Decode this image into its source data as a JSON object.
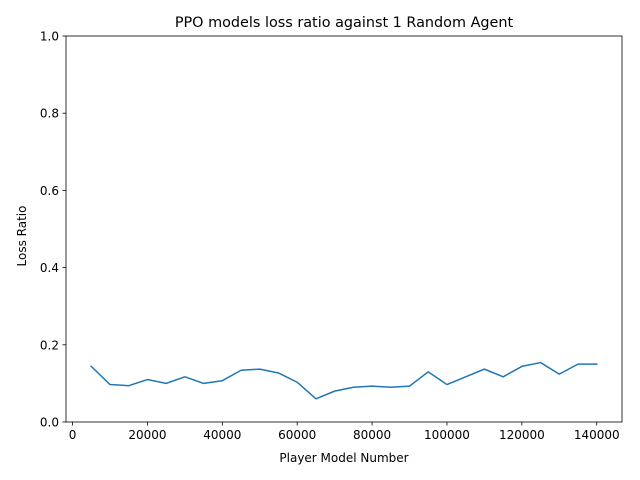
{
  "chart_data": {
    "type": "line",
    "title": "PPO models loss ratio against 1 Random Agent",
    "xlabel": "Player Model Number",
    "ylabel": "Loss Ratio",
    "xlim": [
      -1750,
      146750
    ],
    "ylim": [
      0,
      1
    ],
    "xticks": [
      0,
      20000,
      40000,
      60000,
      80000,
      100000,
      120000,
      140000
    ],
    "xtick_labels": [
      "0",
      "20000",
      "40000",
      "60000",
      "80000",
      "100000",
      "120000",
      "140000"
    ],
    "yticks": [
      0,
      0.2,
      0.4,
      0.6,
      0.8,
      1.0
    ],
    "ytick_labels": [
      "0.0",
      "0.2",
      "0.4",
      "0.6",
      "0.8",
      "1.0"
    ],
    "grid": false,
    "series": [
      {
        "color": "#1f77b4",
        "x": [
          5000,
          10000,
          15000,
          20000,
          25000,
          30000,
          35000,
          40000,
          45000,
          50000,
          55000,
          60000,
          65000,
          70000,
          75000,
          80000,
          85000,
          90000,
          95000,
          100000,
          105000,
          110000,
          115000,
          120000,
          125000,
          130000,
          135000,
          140000
        ],
        "y": [
          0.144,
          0.097,
          0.094,
          0.11,
          0.1,
          0.117,
          0.1,
          0.107,
          0.134,
          0.137,
          0.127,
          0.103,
          0.06,
          0.08,
          0.09,
          0.093,
          0.09,
          0.093,
          0.13,
          0.097,
          0.117,
          0.137,
          0.117,
          0.144,
          0.154,
          0.124,
          0.15,
          0.15
        ]
      }
    ]
  }
}
